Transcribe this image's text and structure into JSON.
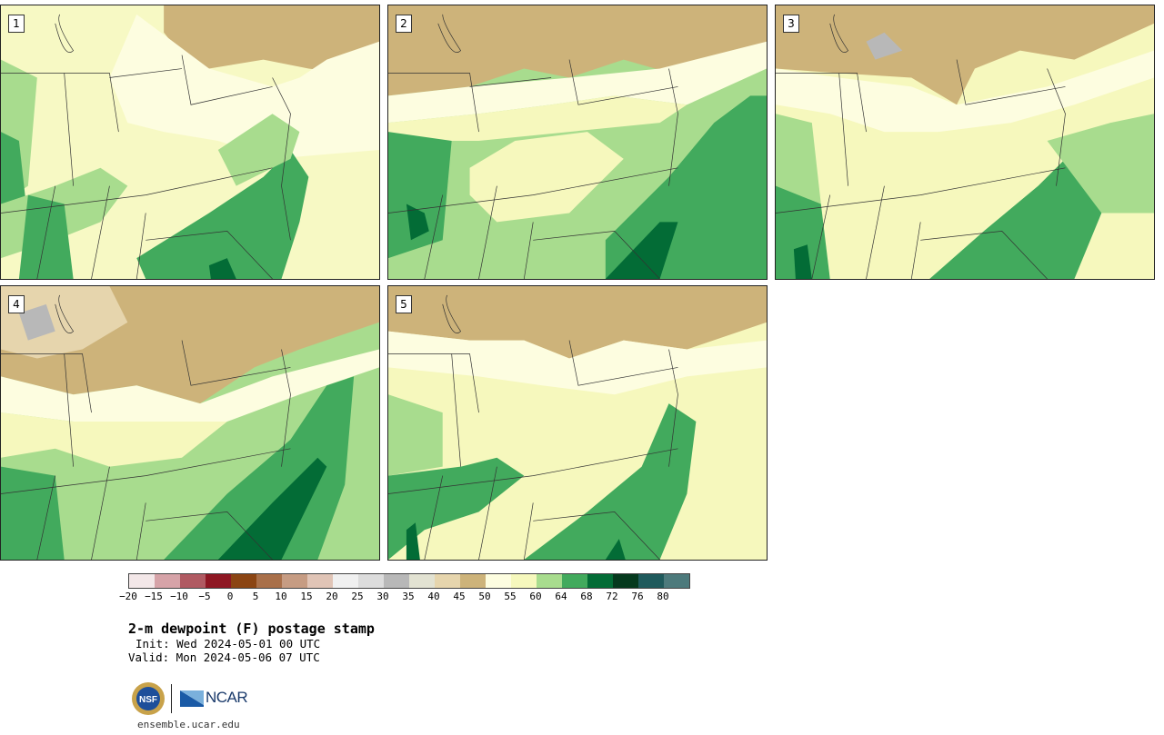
{
  "panels": [
    {
      "label": "1"
    },
    {
      "label": "2"
    },
    {
      "label": "3"
    },
    {
      "label": "4"
    },
    {
      "label": "5"
    }
  ],
  "colorbar": {
    "tick_labels": [
      "−20",
      "−15",
      "−10",
      "−5",
      "0",
      "5",
      "10",
      "15",
      "20",
      "25",
      "30",
      "35",
      "40",
      "45",
      "50",
      "55",
      "60",
      "64",
      "68",
      "72",
      "76",
      "80"
    ],
    "colors": [
      "#f3e7e8",
      "#d6a3a8",
      "#b05a62",
      "#8e1723",
      "#8b4513",
      "#a9704a",
      "#c69c83",
      "#e0c4b6",
      "#f0f0f0",
      "#dcdcdc",
      "#b8b8b8",
      "#e2e2d2",
      "#e6d5ad",
      "#cdb37a",
      "#fdfde0",
      "#f6f8bd",
      "#a8dc8e",
      "#42aa5d",
      "#036c36",
      "#05391d",
      "#1f5a5c",
      "#4d7a7c"
    ]
  },
  "title": "2-m dewpoint (F) postage stamp",
  "init": "Init: Wed 2024-05-01 00 UTC",
  "valid": "Valid: Mon 2024-05-06 07 UTC",
  "branding": {
    "nsf_label": "NSF",
    "ncar_label": "NCAR",
    "site": "ensemble.ucar.edu"
  }
}
